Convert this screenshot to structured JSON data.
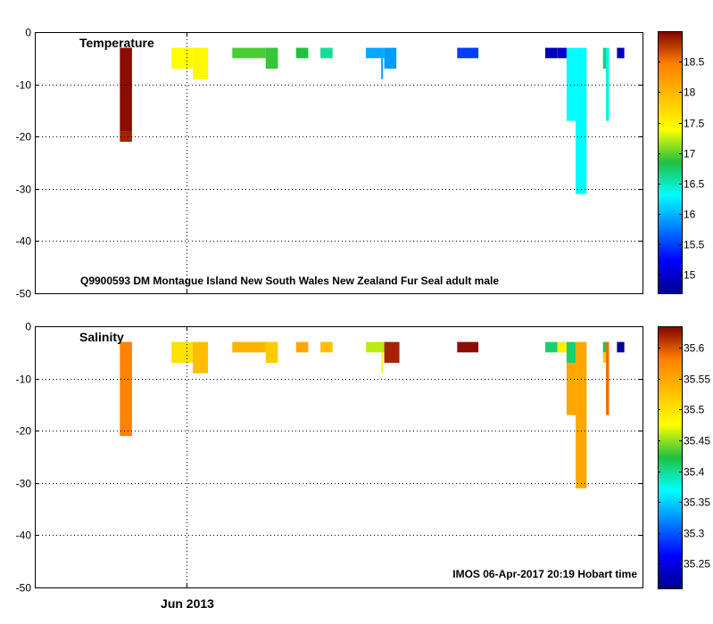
{
  "chart_data": [
    {
      "type": "heatmap",
      "title": "Temperature",
      "annotation": "Q9900593 DM Montague Island New South Wales New Zealand Fur Seal adult male",
      "xlabel": "",
      "ylabel": "",
      "ylim": [
        -50,
        0
      ],
      "yticks": [
        0,
        -10,
        -20,
        -30,
        -40,
        -50
      ],
      "xticks": [
        "Jun 2013"
      ],
      "grid": true,
      "colorbar": {
        "range": [
          14.7,
          19.0
        ],
        "ticks": [
          15,
          15.5,
          16,
          16.5,
          17,
          17.5,
          18,
          18.5
        ],
        "colormap": "jet"
      },
      "cells": [
        {
          "t": 0.14,
          "t2": 0.16,
          "z1": 3,
          "z2": 19,
          "v": 18.95
        },
        {
          "t": 0.14,
          "t2": 0.16,
          "z1": 19,
          "z2": 21,
          "v": 18.85
        },
        {
          "t": 0.225,
          "t2": 0.26,
          "z1": 3,
          "z2": 7,
          "v": 17.4
        },
        {
          "t": 0.26,
          "t2": 0.285,
          "z1": 3,
          "z2": 9,
          "v": 17.45
        },
        {
          "t": 0.325,
          "t2": 0.38,
          "z1": 3,
          "z2": 5,
          "v": 16.95
        },
        {
          "t": 0.38,
          "t2": 0.4,
          "z1": 3,
          "z2": 7,
          "v": 16.9
        },
        {
          "t": 0.43,
          "t2": 0.45,
          "z1": 3,
          "z2": 5,
          "v": 16.85
        },
        {
          "t": 0.47,
          "t2": 0.49,
          "z1": 3,
          "z2": 5,
          "v": 16.6
        },
        {
          "t": 0.545,
          "t2": 0.575,
          "z1": 3,
          "z2": 5,
          "v": 15.95
        },
        {
          "t": 0.575,
          "t2": 0.595,
          "z1": 3,
          "z2": 7,
          "v": 15.9
        },
        {
          "t": 0.57,
          "t2": 0.573,
          "z1": 5,
          "z2": 9,
          "v": 15.9
        },
        {
          "t": 0.695,
          "t2": 0.73,
          "z1": 3,
          "z2": 5,
          "v": 15.5
        },
        {
          "t": 0.84,
          "t2": 0.86,
          "z1": 3,
          "z2": 5,
          "v": 14.9
        },
        {
          "t": 0.86,
          "t2": 0.875,
          "z1": 3,
          "z2": 5,
          "v": 15.0
        },
        {
          "t": 0.875,
          "t2": 0.89,
          "z1": 3,
          "z2": 17,
          "v": 16.3
        },
        {
          "t": 0.89,
          "t2": 0.908,
          "z1": 3,
          "z2": 31,
          "v": 16.3
        },
        {
          "t": 0.935,
          "t2": 0.94,
          "z1": 3,
          "z2": 7,
          "v": 16.7
        },
        {
          "t": 0.94,
          "t2": 0.945,
          "z1": 3,
          "z2": 17,
          "v": 16.4
        },
        {
          "t": 0.958,
          "t2": 0.97,
          "z1": 3,
          "z2": 5,
          "v": 14.9
        }
      ]
    },
    {
      "type": "heatmap",
      "title": "Salinity",
      "annotation": "IMOS 06-Apr-2017 20:19 Hobart time",
      "xlabel": "",
      "ylabel": "",
      "ylim": [
        -50,
        0
      ],
      "yticks": [
        0,
        -10,
        -20,
        -30,
        -40,
        -50
      ],
      "xticks": [
        "Jun 2013"
      ],
      "grid": true,
      "colorbar": {
        "range": [
          35.21,
          35.635
        ],
        "ticks": [
          35.25,
          35.3,
          35.35,
          35.4,
          35.45,
          35.5,
          35.55,
          35.6
        ],
        "colormap": "jet"
      },
      "cells": [
        {
          "t": 0.14,
          "t2": 0.16,
          "z1": 3,
          "z2": 21,
          "v": 35.58
        },
        {
          "t": 0.225,
          "t2": 0.26,
          "z1": 3,
          "z2": 7,
          "v": 35.5
        },
        {
          "t": 0.26,
          "t2": 0.285,
          "z1": 3,
          "z2": 9,
          "v": 35.53
        },
        {
          "t": 0.325,
          "t2": 0.38,
          "z1": 3,
          "z2": 5,
          "v": 35.54
        },
        {
          "t": 0.38,
          "t2": 0.4,
          "z1": 3,
          "z2": 7,
          "v": 35.52
        },
        {
          "t": 0.43,
          "t2": 0.45,
          "z1": 3,
          "z2": 5,
          "v": 35.55
        },
        {
          "t": 0.47,
          "t2": 0.49,
          "z1": 3,
          "z2": 5,
          "v": 35.53
        },
        {
          "t": 0.545,
          "t2": 0.575,
          "z1": 3,
          "z2": 5,
          "v": 35.46
        },
        {
          "t": 0.57,
          "t2": 0.573,
          "z1": 5,
          "z2": 9,
          "v": 35.48
        },
        {
          "t": 0.575,
          "t2": 0.6,
          "z1": 3,
          "z2": 7,
          "v": 35.62
        },
        {
          "t": 0.695,
          "t2": 0.73,
          "z1": 3,
          "z2": 5,
          "v": 35.63
        },
        {
          "t": 0.84,
          "t2": 0.86,
          "z1": 3,
          "z2": 5,
          "v": 35.41
        },
        {
          "t": 0.86,
          "t2": 0.875,
          "z1": 3,
          "z2": 5,
          "v": 35.49
        },
        {
          "t": 0.875,
          "t2": 0.89,
          "z1": 3,
          "z2": 7,
          "v": 35.41
        },
        {
          "t": 0.875,
          "t2": 0.89,
          "z1": 7,
          "z2": 17,
          "v": 35.55
        },
        {
          "t": 0.89,
          "t2": 0.908,
          "z1": 3,
          "z2": 31,
          "v": 35.55
        },
        {
          "t": 0.935,
          "t2": 0.94,
          "z1": 3,
          "z2": 5,
          "v": 35.42
        },
        {
          "t": 0.935,
          "t2": 0.94,
          "z1": 5,
          "z2": 7,
          "v": 35.52
        },
        {
          "t": 0.94,
          "t2": 0.945,
          "z1": 3,
          "z2": 17,
          "v": 35.59
        },
        {
          "t": 0.958,
          "t2": 0.97,
          "z1": 3,
          "z2": 5,
          "v": 35.21
        }
      ]
    }
  ]
}
